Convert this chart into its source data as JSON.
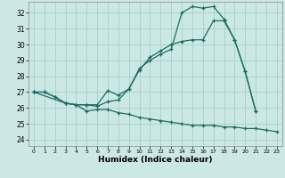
{
  "xlabel": "Humidex (Indice chaleur)",
  "bg_color": "#cce8e4",
  "grid_color": "#a8d0cc",
  "line_color": "#1a6e62",
  "xlim": [
    -0.5,
    23.5
  ],
  "ylim": [
    23.6,
    32.7
  ],
  "xticks": [
    0,
    1,
    2,
    3,
    4,
    5,
    6,
    7,
    8,
    9,
    10,
    11,
    12,
    13,
    14,
    15,
    16,
    17,
    18,
    19,
    20,
    21,
    22,
    23
  ],
  "yticks": [
    24,
    25,
    26,
    27,
    28,
    29,
    30,
    31,
    32
  ],
  "curve_top_x": [
    0,
    1,
    2,
    3,
    4,
    5,
    6,
    7,
    8,
    9,
    10,
    11,
    12,
    13,
    14,
    15,
    16,
    17,
    18,
    19,
    20,
    21
  ],
  "curve_top_y": [
    27.0,
    27.0,
    26.7,
    26.3,
    26.2,
    26.2,
    26.2,
    27.1,
    26.8,
    27.2,
    28.5,
    29.0,
    29.4,
    29.7,
    32.0,
    32.4,
    32.3,
    32.4,
    31.6,
    30.3,
    28.3,
    25.8
  ],
  "curve_mid_x": [
    0,
    3,
    4,
    5,
    6,
    7,
    8,
    9,
    10,
    11,
    12,
    13,
    14,
    15,
    16,
    17,
    18,
    19,
    20,
    21
  ],
  "curve_mid_y": [
    27.0,
    26.3,
    26.2,
    26.2,
    26.1,
    26.4,
    26.5,
    27.2,
    28.4,
    29.2,
    29.6,
    30.0,
    30.2,
    30.3,
    30.3,
    31.5,
    31.5,
    30.3,
    28.3,
    25.8
  ],
  "curve_bot_x": [
    0,
    1,
    2,
    3,
    4,
    5,
    6,
    7,
    8,
    9,
    10,
    11,
    12,
    13,
    14,
    15,
    16,
    17,
    18,
    19,
    20,
    21,
    22,
    23
  ],
  "curve_bot_y": [
    27.0,
    27.0,
    26.7,
    26.3,
    26.2,
    25.8,
    25.9,
    25.9,
    25.7,
    25.6,
    25.4,
    25.3,
    25.2,
    25.1,
    25.0,
    24.9,
    24.9,
    24.9,
    24.8,
    24.8,
    24.7,
    24.7,
    24.6,
    24.5
  ]
}
